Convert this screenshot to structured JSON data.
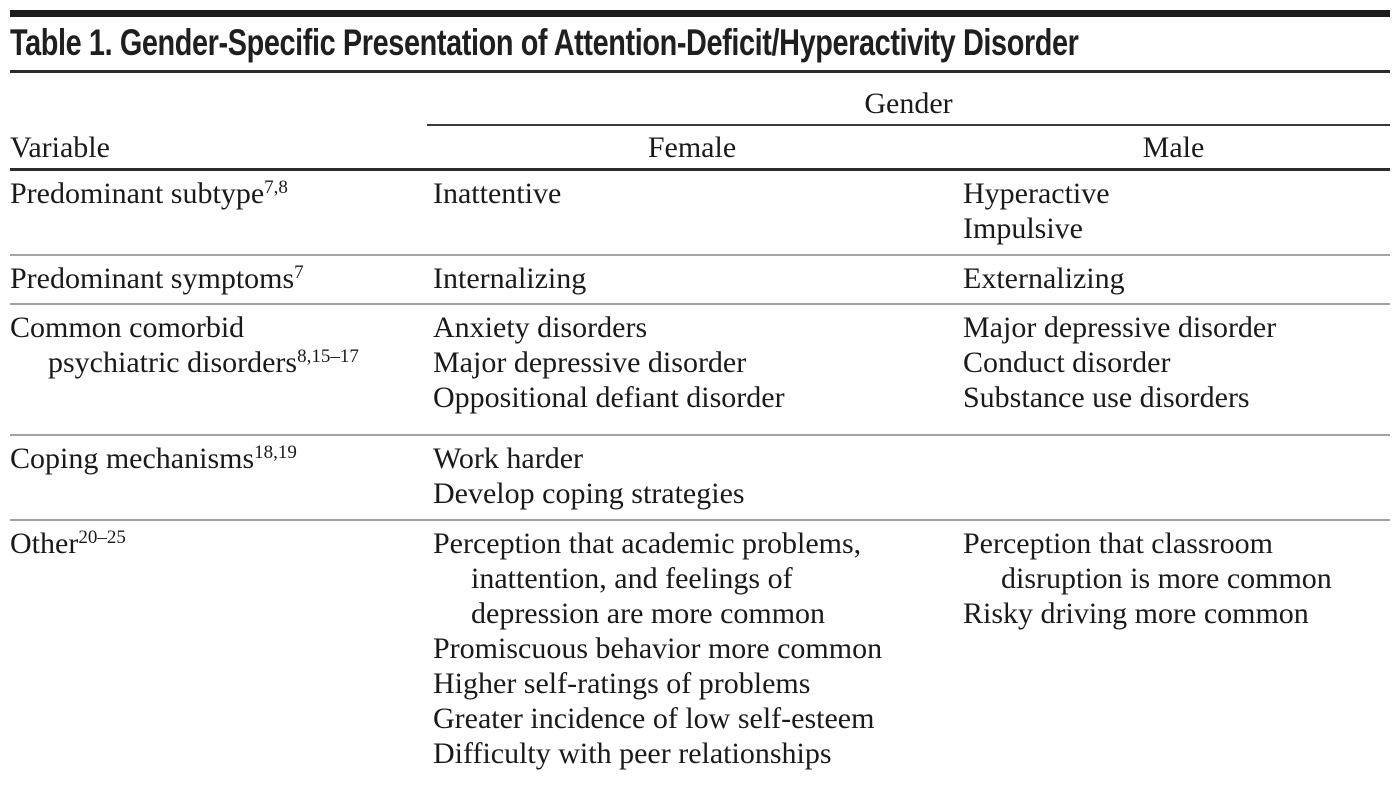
{
  "table_title": "Table 1. Gender-Specific Presentation of Attention-Deficit/Hyperactivity Disorder",
  "header": {
    "spanner_label": "Gender",
    "variable_label": "Variable",
    "female_label": "Female",
    "male_label": "Male"
  },
  "colors": {
    "text": "#1a1a1a",
    "rule_dark": "#2b2b2b",
    "rule_light": "#a3a3a3"
  },
  "rows": [
    {
      "variable": [
        {
          "t": "Predominant subtype",
          "sup": "7,8"
        }
      ],
      "female": [
        {
          "t": "Inattentive"
        }
      ],
      "male": [
        {
          "t": "Hyperactive"
        },
        {
          "t": "Impulsive"
        }
      ]
    },
    {
      "variable": [
        {
          "t": "Predominant symptoms",
          "sup": "7"
        }
      ],
      "female": [
        {
          "t": "Internalizing"
        }
      ],
      "male": [
        {
          "t": "Externalizing"
        }
      ]
    },
    {
      "variable": [
        {
          "t": "Common comorbid"
        },
        {
          "t": "psychiatric disorders",
          "sup": "8,15–17",
          "indent": true
        }
      ],
      "female": [
        {
          "t": "Anxiety disorders"
        },
        {
          "t": "Major depressive disorder"
        },
        {
          "t": "Oppositional defiant disorder"
        }
      ],
      "male": [
        {
          "t": "Major depressive disorder"
        },
        {
          "t": "Conduct disorder"
        },
        {
          "t": "Substance use disorders"
        }
      ]
    },
    {
      "variable": [
        {
          "t": "Coping mechanisms",
          "sup": "18,19"
        }
      ],
      "female": [
        {
          "t": "Work harder"
        },
        {
          "t": "Develop coping strategies"
        }
      ],
      "male": []
    },
    {
      "variable": [
        {
          "t": "Other",
          "sup": "20–25"
        }
      ],
      "female": [
        {
          "t": "Perception that academic problems,"
        },
        {
          "t": "inattention, and feelings of",
          "indent": true
        },
        {
          "t": "depression are more common",
          "indent": true
        },
        {
          "t": "Promiscuous behavior more common"
        },
        {
          "t": "Higher self-ratings of problems"
        },
        {
          "t": "Greater incidence of low self-esteem"
        },
        {
          "t": "Difficulty with peer relationships"
        }
      ],
      "male": [
        {
          "t": "Perception that classroom"
        },
        {
          "t": "disruption is more common",
          "indent": true
        },
        {
          "t": "Risky driving more common"
        }
      ]
    }
  ]
}
